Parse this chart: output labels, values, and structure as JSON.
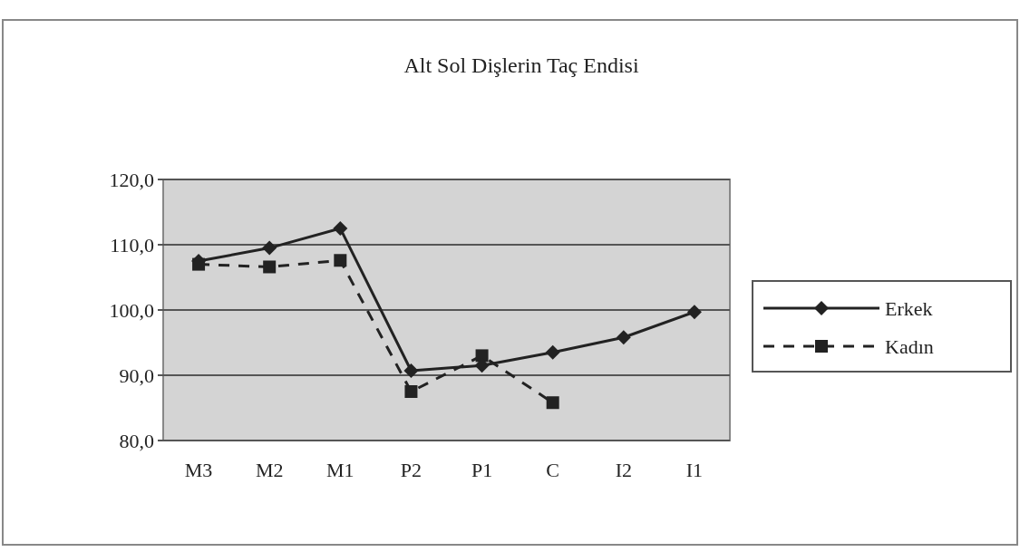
{
  "chart_data": {
    "type": "line",
    "title": "Alt Sol Dişlerin Taç Endisi",
    "categories": [
      "M3",
      "M2",
      "M1",
      "P2",
      "P1",
      "C",
      "I2",
      "I1"
    ],
    "series": [
      {
        "name": "Erkek",
        "color": "#222222",
        "values": [
          107.5,
          109.5,
          112.5,
          90.7,
          91.5,
          93.5,
          95.8,
          99.7
        ],
        "marker": "diamond",
        "line_style": "solid"
      },
      {
        "name": "Kadın",
        "color": "#222222",
        "values": [
          107.0,
          106.6,
          107.6,
          87.5,
          93.0,
          85.8,
          null,
          null
        ],
        "marker": "square",
        "line_style": "dashed"
      }
    ],
    "ylim": [
      80,
      120
    ],
    "yticks": [
      {
        "value": 80,
        "label": "80,0"
      },
      {
        "value": 90,
        "label": "90,0"
      },
      {
        "value": 100,
        "label": "100,0"
      },
      {
        "value": 110,
        "label": "110,0"
      },
      {
        "value": 120,
        "label": "120,0"
      }
    ],
    "grid": "y",
    "legend": "right"
  }
}
